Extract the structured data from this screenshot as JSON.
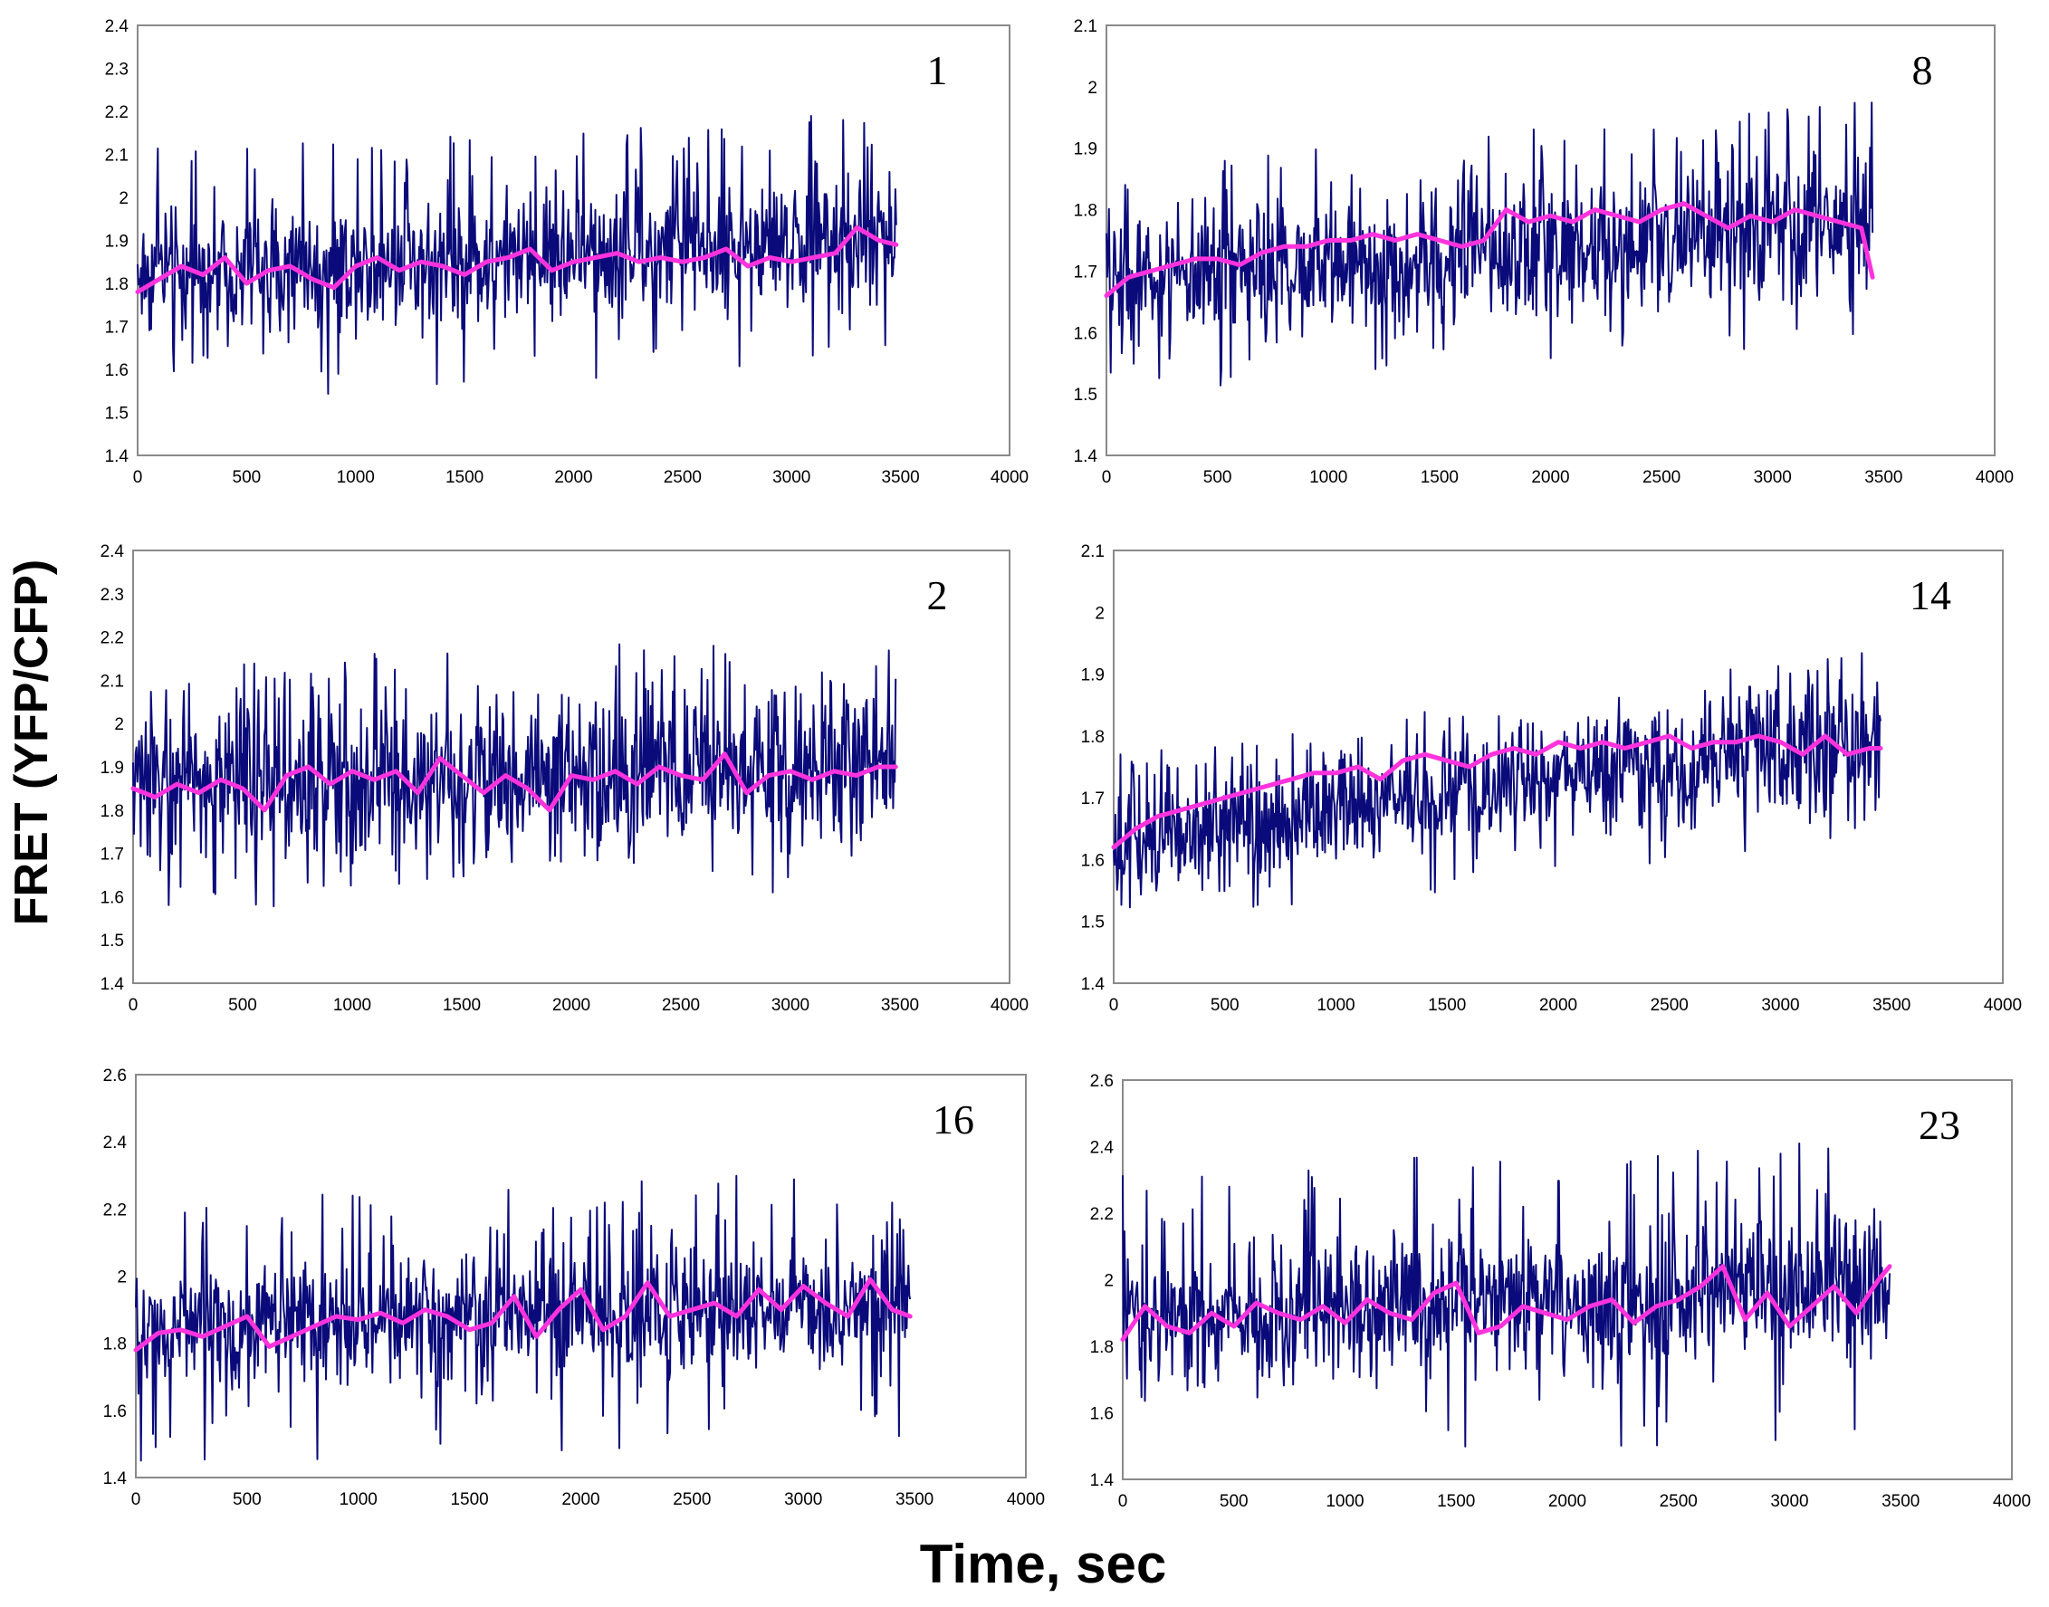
{
  "figure": {
    "ylabel": "FRET (YFP/CFP)",
    "xlabel": "Time, sec",
    "colors": {
      "raw": "#0a0a7a",
      "average": "#ff33dd",
      "frame": "#8a8a8a"
    }
  },
  "chart_data": [
    {
      "type": "line",
      "panel_label": "1",
      "xlim": [
        0,
        4000
      ],
      "ylim": [
        1.4,
        2.4
      ],
      "xticks": [
        "0",
        "500",
        "1000",
        "1500",
        "2000",
        "2500",
        "3000",
        "3500",
        "4000"
      ],
      "yticks": [
        "1.4",
        "1.5",
        "1.6",
        "1.7",
        "1.8",
        "1.9",
        "2",
        "2.1",
        "2.2",
        "2.3",
        "2.4"
      ],
      "series": [
        {
          "name": "raw",
          "x_end": 3480,
          "base_start": 1.82,
          "base_end": 1.9,
          "noise": 0.09,
          "spike": 0.3
        },
        {
          "name": "average",
          "x": [
            0,
            100,
            200,
            300,
            400,
            500,
            600,
            700,
            800,
            900,
            1000,
            1100,
            1200,
            1300,
            1400,
            1500,
            1600,
            1700,
            1800,
            1900,
            2000,
            2100,
            2200,
            2300,
            2400,
            2500,
            2600,
            2700,
            2800,
            2900,
            3000,
            3100,
            3200,
            3300,
            3400,
            3480
          ],
          "values": [
            1.78,
            1.81,
            1.84,
            1.82,
            1.86,
            1.8,
            1.83,
            1.84,
            1.81,
            1.79,
            1.84,
            1.86,
            1.83,
            1.85,
            1.84,
            1.82,
            1.85,
            1.86,
            1.88,
            1.83,
            1.85,
            1.86,
            1.87,
            1.85,
            1.86,
            1.85,
            1.86,
            1.88,
            1.84,
            1.86,
            1.85,
            1.86,
            1.87,
            1.93,
            1.9,
            1.89
          ]
        }
      ]
    },
    {
      "type": "line",
      "panel_label": "8",
      "xlim": [
        0,
        4000
      ],
      "ylim": [
        1.4,
        2.1
      ],
      "xticks": [
        "0",
        "500",
        "1000",
        "1500",
        "2000",
        "2500",
        "3000",
        "3500",
        "4000"
      ],
      "yticks": [
        "1.4",
        "1.5",
        "1.6",
        "1.7",
        "1.8",
        "1.9",
        "2",
        "2.1"
      ],
      "series": [
        {
          "name": "raw",
          "x_end": 3450,
          "base_start": 1.68,
          "base_end": 1.78,
          "noise": 0.07,
          "spike": 0.2
        },
        {
          "name": "average",
          "x": [
            0,
            100,
            200,
            300,
            400,
            500,
            600,
            700,
            800,
            900,
            1000,
            1100,
            1200,
            1300,
            1400,
            1500,
            1600,
            1700,
            1800,
            1900,
            2000,
            2100,
            2200,
            2300,
            2400,
            2500,
            2600,
            2700,
            2800,
            2900,
            3000,
            3100,
            3200,
            3300,
            3400,
            3450
          ],
          "values": [
            1.66,
            1.69,
            1.7,
            1.71,
            1.72,
            1.72,
            1.71,
            1.73,
            1.74,
            1.74,
            1.75,
            1.75,
            1.76,
            1.75,
            1.76,
            1.75,
            1.74,
            1.75,
            1.8,
            1.78,
            1.79,
            1.78,
            1.8,
            1.79,
            1.78,
            1.8,
            1.81,
            1.79,
            1.77,
            1.79,
            1.78,
            1.8,
            1.79,
            1.78,
            1.77,
            1.69
          ]
        }
      ]
    },
    {
      "type": "line",
      "panel_label": "2",
      "xlim": [
        0,
        4000
      ],
      "ylim": [
        1.4,
        2.4
      ],
      "xticks": [
        "0",
        "500",
        "1000",
        "1500",
        "2000",
        "2500",
        "3000",
        "3500",
        "4000"
      ],
      "yticks": [
        "1.4",
        "1.5",
        "1.6",
        "1.7",
        "1.8",
        "1.9",
        "2",
        "2.1",
        "2.2",
        "2.3",
        "2.4"
      ],
      "series": [
        {
          "name": "raw",
          "x_end": 3480,
          "base_start": 1.86,
          "base_end": 1.9,
          "noise": 0.11,
          "spike": 0.3
        },
        {
          "name": "average",
          "x": [
            0,
            100,
            200,
            300,
            400,
            500,
            600,
            700,
            800,
            900,
            1000,
            1100,
            1200,
            1300,
            1400,
            1500,
            1600,
            1700,
            1800,
            1900,
            2000,
            2100,
            2200,
            2300,
            2400,
            2500,
            2600,
            2700,
            2800,
            2900,
            3000,
            3100,
            3200,
            3300,
            3400,
            3480
          ],
          "values": [
            1.85,
            1.83,
            1.86,
            1.84,
            1.87,
            1.85,
            1.8,
            1.88,
            1.9,
            1.86,
            1.89,
            1.87,
            1.89,
            1.84,
            1.92,
            1.88,
            1.84,
            1.88,
            1.85,
            1.8,
            1.88,
            1.87,
            1.89,
            1.86,
            1.9,
            1.88,
            1.87,
            1.93,
            1.84,
            1.88,
            1.89,
            1.87,
            1.89,
            1.88,
            1.9,
            1.9
          ]
        }
      ]
    },
    {
      "type": "line",
      "panel_label": "14",
      "xlim": [
        0,
        4000
      ],
      "ylim": [
        1.4,
        2.1
      ],
      "xticks": [
        "0",
        "500",
        "1000",
        "1500",
        "2000",
        "2500",
        "3000",
        "3500",
        "4000"
      ],
      "yticks": [
        "1.4",
        "1.5",
        "1.6",
        "1.7",
        "1.8",
        "1.9",
        "2",
        "2.1"
      ],
      "series": [
        {
          "name": "raw",
          "x_end": 3450,
          "base_start": 1.63,
          "base_end": 1.79,
          "noise": 0.06,
          "spike": 0.15
        },
        {
          "name": "average",
          "x": [
            0,
            100,
            200,
            300,
            400,
            500,
            600,
            700,
            800,
            900,
            1000,
            1100,
            1200,
            1300,
            1400,
            1500,
            1600,
            1700,
            1800,
            1900,
            2000,
            2100,
            2200,
            2300,
            2400,
            2500,
            2600,
            2700,
            2800,
            2900,
            3000,
            3100,
            3200,
            3300,
            3400,
            3450
          ],
          "values": [
            1.62,
            1.65,
            1.67,
            1.68,
            1.69,
            1.7,
            1.71,
            1.72,
            1.73,
            1.74,
            1.74,
            1.75,
            1.73,
            1.76,
            1.77,
            1.76,
            1.75,
            1.77,
            1.78,
            1.77,
            1.79,
            1.78,
            1.79,
            1.78,
            1.79,
            1.8,
            1.78,
            1.79,
            1.79,
            1.8,
            1.79,
            1.77,
            1.8,
            1.77,
            1.78,
            1.78
          ]
        }
      ]
    },
    {
      "type": "line",
      "panel_label": "16",
      "xlim": [
        0,
        4000
      ],
      "ylim": [
        1.4,
        2.6
      ],
      "xticks": [
        "0",
        "500",
        "1000",
        "1500",
        "2000",
        "2500",
        "3000",
        "3500",
        "4000"
      ],
      "yticks": [
        "1.4",
        "1.6",
        "1.8",
        "2",
        "2.2",
        "2.4",
        "2.6"
      ],
      "series": [
        {
          "name": "raw",
          "x_end": 3480,
          "base_start": 1.83,
          "base_end": 1.92,
          "noise": 0.12,
          "spike": 0.4
        },
        {
          "name": "average",
          "x": [
            0,
            100,
            200,
            300,
            400,
            500,
            600,
            700,
            800,
            900,
            1000,
            1100,
            1200,
            1300,
            1400,
            1500,
            1600,
            1700,
            1800,
            1900,
            2000,
            2100,
            2200,
            2300,
            2400,
            2500,
            2600,
            2700,
            2800,
            2900,
            3000,
            3100,
            3200,
            3300,
            3400,
            3480
          ],
          "values": [
            1.78,
            1.83,
            1.84,
            1.82,
            1.85,
            1.88,
            1.79,
            1.82,
            1.85,
            1.88,
            1.87,
            1.89,
            1.86,
            1.9,
            1.88,
            1.84,
            1.86,
            1.94,
            1.82,
            1.9,
            1.96,
            1.84,
            1.88,
            1.98,
            1.88,
            1.9,
            1.92,
            1.88,
            1.96,
            1.9,
            1.97,
            1.92,
            1.88,
            1.99,
            1.9,
            1.88
          ]
        }
      ]
    },
    {
      "type": "line",
      "panel_label": "23",
      "xlim": [
        0,
        4000
      ],
      "ylim": [
        1.4,
        2.6
      ],
      "xticks": [
        "0",
        "500",
        "1000",
        "1500",
        "2000",
        "2500",
        "3000",
        "3500",
        "4000"
      ],
      "yticks": [
        "1.4",
        "1.6",
        "1.8",
        "2",
        "2.2",
        "2.4",
        "2.6"
      ],
      "series": [
        {
          "name": "raw",
          "x_end": 3450,
          "base_start": 1.88,
          "base_end": 1.98,
          "noise": 0.13,
          "spike": 0.45
        },
        {
          "name": "average",
          "x": [
            0,
            100,
            200,
            300,
            400,
            500,
            600,
            700,
            800,
            900,
            1000,
            1100,
            1200,
            1300,
            1400,
            1500,
            1600,
            1700,
            1800,
            1900,
            2000,
            2100,
            2200,
            2300,
            2400,
            2500,
            2600,
            2700,
            2800,
            2900,
            3000,
            3100,
            3200,
            3300,
            3400,
            3450
          ],
          "values": [
            1.82,
            1.92,
            1.86,
            1.84,
            1.9,
            1.86,
            1.93,
            1.9,
            1.88,
            1.92,
            1.87,
            1.94,
            1.9,
            1.88,
            1.96,
            1.99,
            1.84,
            1.86,
            1.92,
            1.9,
            1.88,
            1.92,
            1.94,
            1.87,
            1.92,
            1.94,
            1.98,
            2.04,
            1.88,
            1.96,
            1.86,
            1.92,
            1.98,
            1.9,
            2.0,
            2.04
          ]
        }
      ]
    }
  ]
}
